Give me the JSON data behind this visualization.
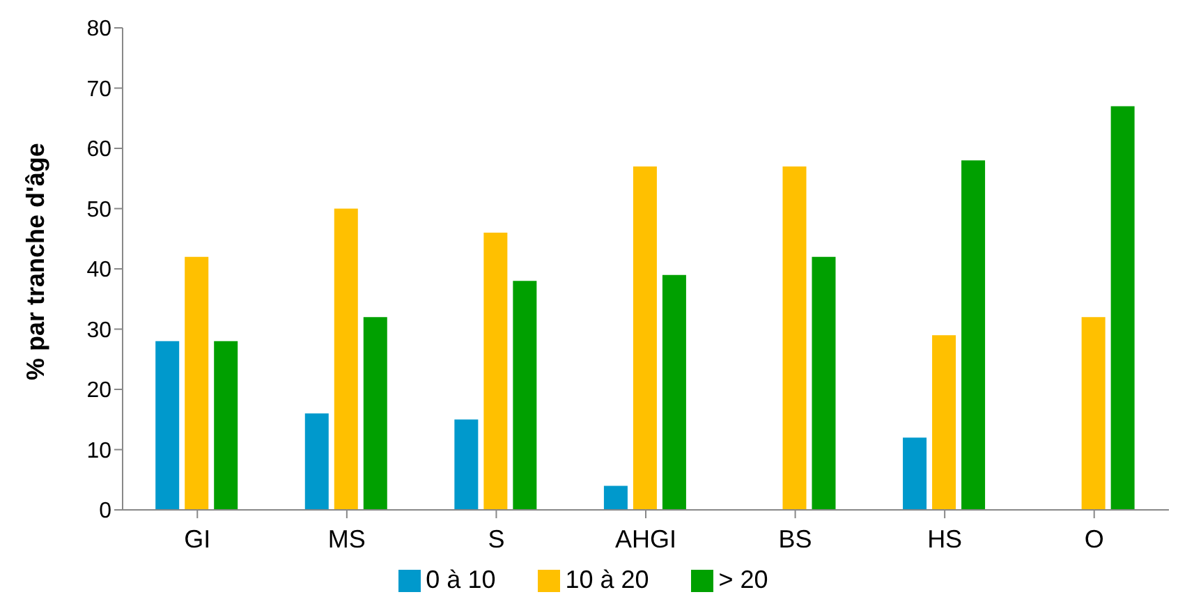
{
  "chart_data": {
    "type": "bar",
    "ylabel": "% par tranche d'âge",
    "categories": [
      "GI",
      "MS",
      "S",
      "AHGI",
      "BS",
      "HS",
      "O"
    ],
    "series": [
      {
        "name": "0 à 10",
        "color": "#0099cc",
        "values": [
          28,
          16,
          15,
          4,
          0,
          12,
          0
        ]
      },
      {
        "name": "10 à 20",
        "color": "#ffc000",
        "values": [
          42,
          50,
          46,
          57,
          57,
          29,
          32
        ]
      },
      {
        "name": "> 20",
        "color": "#00a000",
        "values": [
          28,
          32,
          38,
          39,
          42,
          58,
          67
        ]
      }
    ],
    "ylim": [
      0,
      80
    ],
    "yticks": [
      0,
      10,
      20,
      30,
      40,
      50,
      60,
      70,
      80
    ],
    "grid": false,
    "legend": "bottom"
  }
}
